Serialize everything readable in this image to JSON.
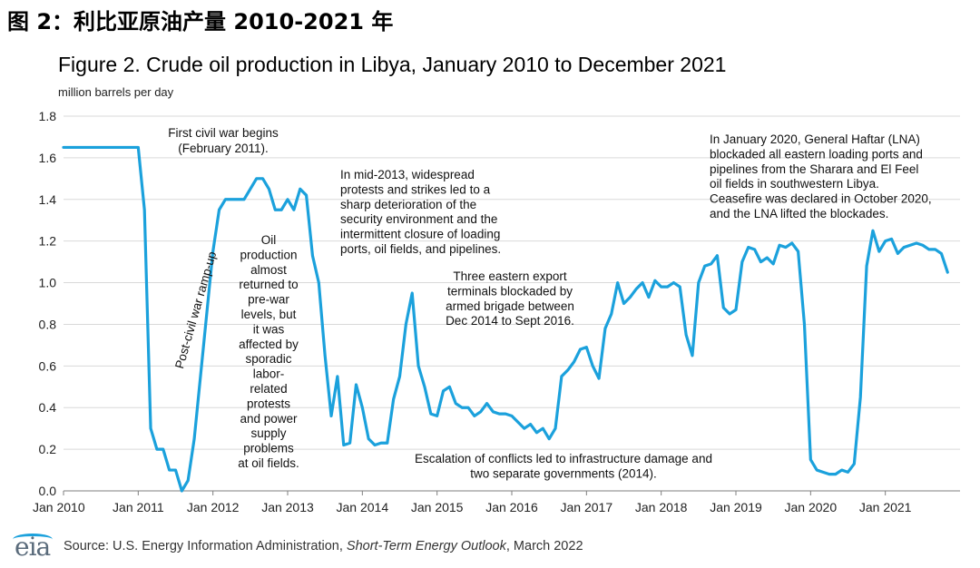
{
  "header": {
    "title": "图 2：利比亚原油产量 2010-2021 年"
  },
  "chart_data": {
    "type": "line",
    "title": "Figure 2. Crude oil production in Libya, January 2010 to December 2021",
    "ylabel": "million barrels per day",
    "xlabel": "",
    "ylim": [
      0,
      1.8
    ],
    "yticks": [
      "0.0",
      "0.2",
      "0.4",
      "0.6",
      "0.8",
      "1.0",
      "1.2",
      "1.4",
      "1.6",
      "1.8"
    ],
    "xticks": [
      "Jan 2010",
      "Jan 2011",
      "Jan 2012",
      "Jan 2013",
      "Jan 2014",
      "Jan 2015",
      "Jan 2016",
      "Jan 2017",
      "Jan 2018",
      "Jan 2019",
      "Jan 2020",
      "Jan 2021"
    ],
    "grid": true,
    "line_color": "#1ba1dc",
    "series": [
      {
        "name": "Libya crude oil production",
        "x_start": "Jan 2010",
        "frequency": "monthly",
        "values": [
          1.65,
          1.65,
          1.65,
          1.65,
          1.65,
          1.65,
          1.65,
          1.65,
          1.65,
          1.65,
          1.65,
          1.65,
          1.65,
          1.35,
          0.3,
          0.2,
          0.2,
          0.1,
          0.1,
          0.0,
          0.05,
          0.25,
          0.55,
          0.85,
          1.15,
          1.35,
          1.4,
          1.4,
          1.4,
          1.4,
          1.45,
          1.5,
          1.5,
          1.45,
          1.35,
          1.35,
          1.4,
          1.35,
          1.45,
          1.42,
          1.13,
          1.0,
          0.65,
          0.36,
          0.55,
          0.22,
          0.23,
          0.51,
          0.4,
          0.25,
          0.22,
          0.23,
          0.23,
          0.44,
          0.55,
          0.8,
          0.95,
          0.6,
          0.5,
          0.37,
          0.36,
          0.48,
          0.5,
          0.42,
          0.4,
          0.4,
          0.36,
          0.38,
          0.42,
          0.38,
          0.37,
          0.37,
          0.36,
          0.33,
          0.3,
          0.32,
          0.28,
          0.3,
          0.25,
          0.3,
          0.55,
          0.58,
          0.62,
          0.68,
          0.69,
          0.6,
          0.54,
          0.78,
          0.85,
          1.0,
          0.9,
          0.93,
          0.97,
          1.0,
          0.93,
          1.01,
          0.98,
          0.98,
          1.0,
          0.98,
          0.75,
          0.65,
          1.0,
          1.08,
          1.09,
          1.13,
          0.88,
          0.85,
          0.87,
          1.1,
          1.17,
          1.16,
          1.1,
          1.12,
          1.09,
          1.18,
          1.17,
          1.19,
          1.15,
          0.8,
          0.15,
          0.1,
          0.09,
          0.08,
          0.08,
          0.1,
          0.09,
          0.13,
          0.45,
          1.08,
          1.25,
          1.15,
          1.2,
          1.21,
          1.14,
          1.17,
          1.18,
          1.19,
          1.18,
          1.16,
          1.16,
          1.14,
          1.05
        ]
      }
    ],
    "annotations": [
      {
        "id": "first-civil-war",
        "lines": [
          "First civil war begins",
          "(February 2011)."
        ]
      },
      {
        "id": "post-civil-war-ramp-up",
        "lines": [
          "Post-civil war ramp-up"
        ]
      },
      {
        "id": "oil-production-returned",
        "lines": [
          "Oil",
          "production",
          "almost",
          "returned to",
          "pre-war",
          "levels, but",
          "it was",
          "affected by",
          "sporadic",
          "labor-",
          "related",
          "protests",
          "and power",
          "supply",
          "problems",
          "at oil fields."
        ]
      },
      {
        "id": "mid-2013-protests",
        "lines": [
          "In mid-2013, widespread",
          "protests and strikes led to a",
          "sharp deterioration of the",
          "security environment and the",
          "intermittent closure of loading",
          "ports, oil fields, and pipelines."
        ]
      },
      {
        "id": "eastern-terminals-blockaded",
        "lines": [
          "Three eastern export",
          "terminals blockaded by",
          "armed brigade between",
          "Dec 2014 to Sept 2016."
        ]
      },
      {
        "id": "escalation-of-conflicts",
        "lines": [
          "Escalation of conflicts led to infrastructure damage and",
          "two separate governments (2014)."
        ]
      },
      {
        "id": "haftar-blockade-2020",
        "lines": [
          "In January 2020, General Haftar (LNA)",
          "blockaded all eastern loading ports and",
          "pipelines from the Sharara and El Feel",
          "oil fields in southwestern Libya.",
          "Ceasefire was declared in October 2020,",
          "and the LNA lifted the blockades."
        ]
      }
    ]
  },
  "footer": {
    "logo_text": "eia",
    "source_prefix": "Source: U.S. Energy Information Administration, ",
    "source_publication": "Short-Term Energy Outlook",
    "source_suffix": ", March 2022"
  }
}
